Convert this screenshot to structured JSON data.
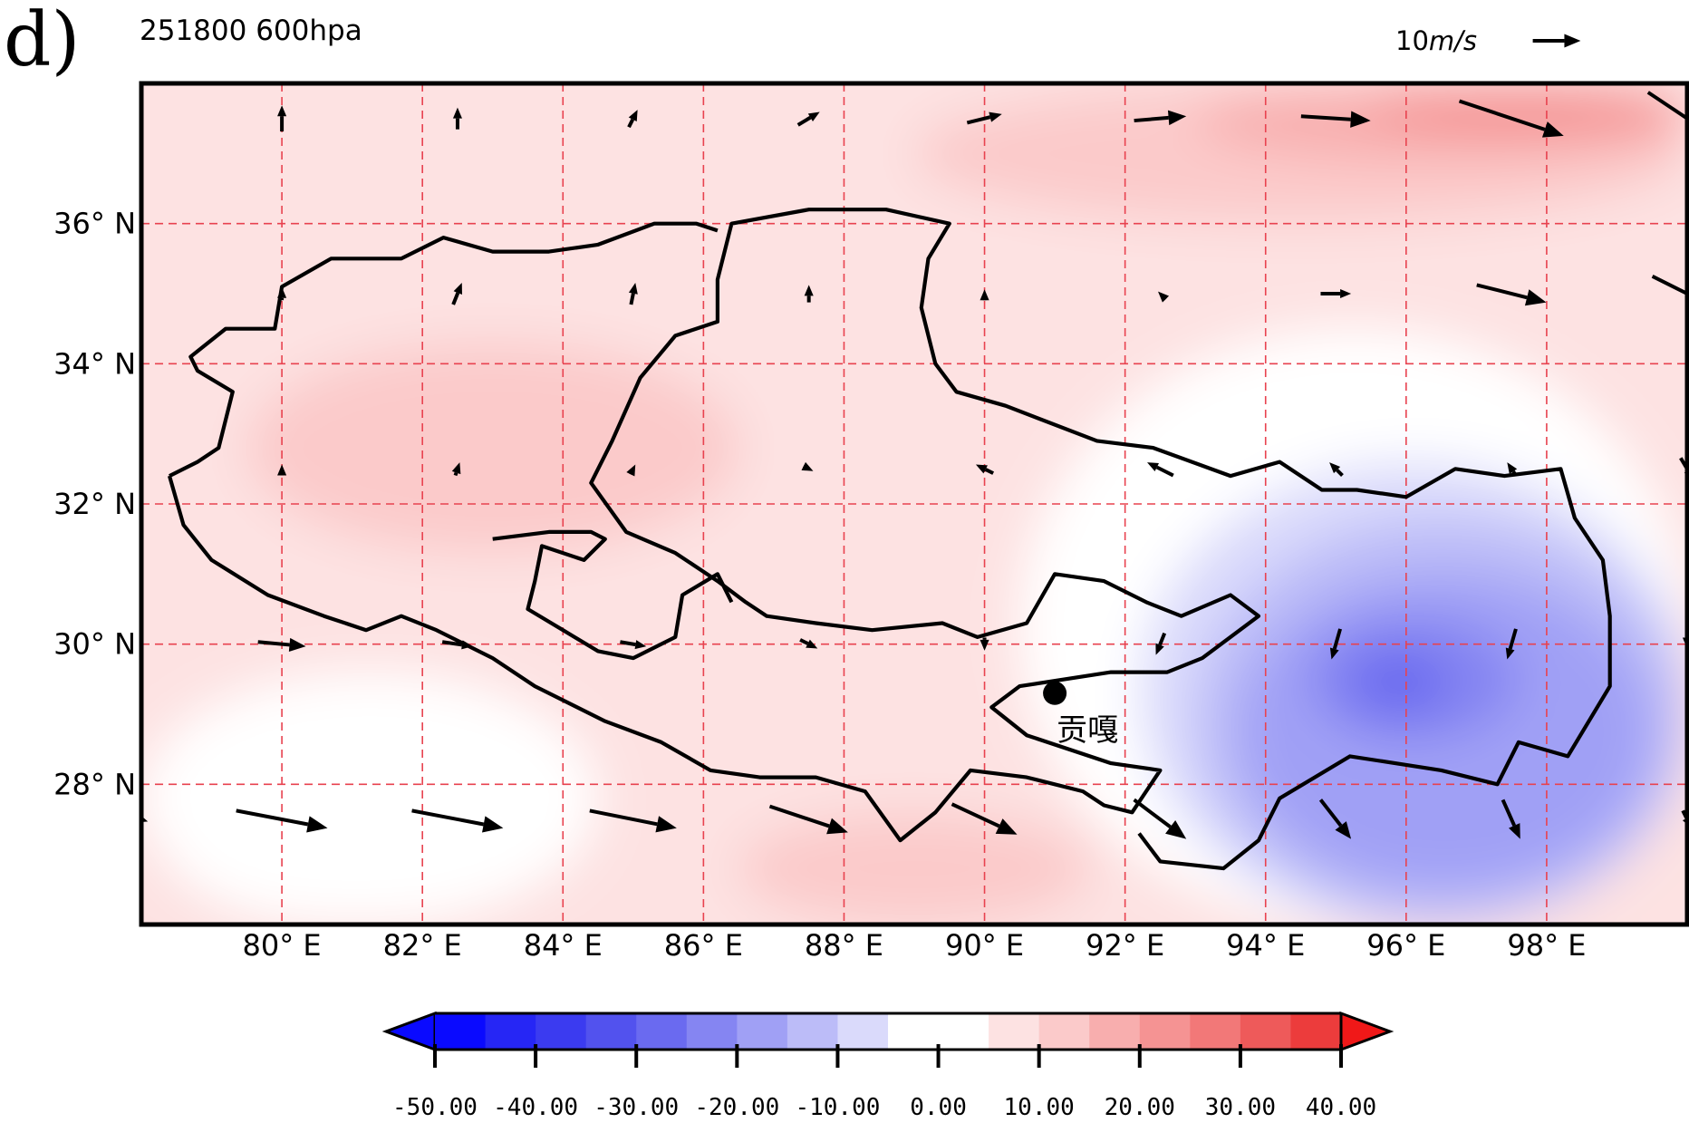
{
  "panel_label": "d)",
  "title": "251800 600hpa",
  "reference_vector": {
    "label_value": "10",
    "label_unit": "m/s",
    "speed_ms": 10
  },
  "station": {
    "name": "贡嘎",
    "lon": 91.0,
    "lat": 29.3
  },
  "colors": {
    "neg_50": "#0a0aff",
    "neg_45": "#2626f5",
    "neg_40": "#3b3bf0",
    "neg_35": "#5252ee",
    "neg_30": "#6a6af0",
    "neg_25": "#8585f2",
    "neg_20": "#a0a0f5",
    "neg_15": "#bcbcf8",
    "neg_10": "#dadafb",
    "zero": "#ffffff",
    "pos_05": "#fde2e2",
    "pos_10": "#fbcaca",
    "pos_15": "#f8aeae",
    "pos_20": "#f59393",
    "pos_25": "#f27878",
    "pos_30": "#ee5a5a",
    "pos_35": "#ec3c3c",
    "pos_40": "#f01818",
    "grid": "#e8424f",
    "border": "#000000"
  },
  "chart_data": {
    "type": "map",
    "title": "251800 600hpa",
    "lon_range": [
      78.0,
      100.0
    ],
    "lat_range": [
      26.0,
      38.0
    ],
    "x_ticks": [
      {
        "value": 80,
        "label": "80° E"
      },
      {
        "value": 82,
        "label": "82° E"
      },
      {
        "value": 84,
        "label": "84° E"
      },
      {
        "value": 86,
        "label": "86° E"
      },
      {
        "value": 88,
        "label": "88° E"
      },
      {
        "value": 90,
        "label": "90° E"
      },
      {
        "value": 92,
        "label": "92° E"
      },
      {
        "value": 94,
        "label": "94° E"
      },
      {
        "value": 96,
        "label": "96° E"
      },
      {
        "value": 98,
        "label": "98° E"
      }
    ],
    "y_ticks": [
      {
        "value": 28,
        "label": "28° N"
      },
      {
        "value": 30,
        "label": "30° N"
      },
      {
        "value": 32,
        "label": "32° N"
      },
      {
        "value": 34,
        "label": "34° N"
      },
      {
        "value": 36,
        "label": "36° N"
      }
    ],
    "colorbar": {
      "levels": [
        -50,
        -45,
        -40,
        -35,
        -30,
        -25,
        -20,
        -15,
        -10,
        -5,
        0,
        5,
        10,
        15,
        20,
        25,
        30,
        35,
        40
      ],
      "tick_values": [
        -50,
        -40,
        -30,
        -20,
        -10,
        0,
        10,
        20,
        30,
        40
      ],
      "tick_labels": [
        "-50.00",
        "-40.00",
        "-30.00",
        "-20.00",
        "-10.00",
        "0.00",
        "10.00",
        "20.00",
        "30.00",
        "40.00"
      ],
      "extend": "both"
    },
    "field_regions": [
      {
        "level": 5,
        "lon": [
          78,
          100
        ],
        "lat": [
          26,
          38
        ]
      },
      {
        "level": 0,
        "lon": [
          90.5,
          100
        ],
        "lat": [
          26,
          34.5
        ]
      },
      {
        "level": 0,
        "lon": [
          78,
          84.5
        ],
        "lat": [
          26,
          29.6
        ]
      },
      {
        "level": 10,
        "lon": [
          79.5,
          86.5
        ],
        "lat": [
          31.3,
          34.3
        ]
      },
      {
        "level": 10,
        "lon": [
          86.5,
          91.5
        ],
        "lat": [
          26,
          27.6
        ]
      },
      {
        "level": 10,
        "lon": [
          89,
          100
        ],
        "lat": [
          36,
          38
        ]
      },
      {
        "level": 15,
        "lon": [
          93,
          100
        ],
        "lat": [
          36.9,
          38
        ]
      },
      {
        "level": 20,
        "lon": [
          95.5,
          100
        ],
        "lat": [
          37.3,
          38
        ]
      },
      {
        "level": -5,
        "lon": [
          78.3,
          83.3
        ],
        "lat": [
          26,
          28.5
        ]
      },
      {
        "level": -5,
        "lon": [
          91,
          100
        ],
        "lat": [
          26,
          33.6
        ]
      },
      {
        "level": -10,
        "lon": [
          92.2,
          100
        ],
        "lat": [
          26,
          32.6
        ]
      },
      {
        "level": -15,
        "lon": [
          93,
          100
        ],
        "lat": [
          26,
          31.8
        ]
      },
      {
        "level": -20,
        "lon": [
          93.6,
          99.5
        ],
        "lat": [
          26.5,
          31.0
        ]
      },
      {
        "level": -25,
        "lon": [
          94.6,
          97.6
        ],
        "lat": [
          28.6,
          30.4
        ]
      },
      {
        "level": -30,
        "lon": [
          95.2,
          96.6
        ],
        "lat": [
          29.0,
          29.9
        ]
      }
    ],
    "wind_vectors": [
      {
        "lon": 80,
        "lat": 37.5,
        "u": 0.0,
        "v": 3.0
      },
      {
        "lon": 82.5,
        "lat": 37.5,
        "u": 0.0,
        "v": 2.5
      },
      {
        "lon": 85,
        "lat": 37.5,
        "u": 1.0,
        "v": 2.0
      },
      {
        "lon": 87.5,
        "lat": 37.5,
        "u": 2.5,
        "v": 1.5
      },
      {
        "lon": 90,
        "lat": 37.5,
        "u": 4.0,
        "v": 1.0
      },
      {
        "lon": 92.5,
        "lat": 37.5,
        "u": 6.0,
        "v": 0.5
      },
      {
        "lon": 95,
        "lat": 37.5,
        "u": 8.0,
        "v": -0.5
      },
      {
        "lon": 97.5,
        "lat": 37.5,
        "u": 12.0,
        "v": -4.0
      },
      {
        "lon": 100,
        "lat": 37.5,
        "u": 9.0,
        "v": -6.0
      },
      {
        "lon": 80,
        "lat": 35.0,
        "u": 0.0,
        "v": 1.5
      },
      {
        "lon": 82.5,
        "lat": 35.0,
        "u": 1.0,
        "v": 2.5
      },
      {
        "lon": 85,
        "lat": 35.0,
        "u": 0.5,
        "v": 2.5
      },
      {
        "lon": 87.5,
        "lat": 35.0,
        "u": 0.0,
        "v": 2.0
      },
      {
        "lon": 90,
        "lat": 35.0,
        "u": 0.0,
        "v": 1.0
      },
      {
        "lon": 92.5,
        "lat": 35.0,
        "u": -0.5,
        "v": 0.5
      },
      {
        "lon": 95,
        "lat": 35.0,
        "u": 3.5,
        "v": 0.0
      },
      {
        "lon": 97.5,
        "lat": 35.0,
        "u": 8.0,
        "v": -2.0
      },
      {
        "lon": 100,
        "lat": 35.0,
        "u": 8.0,
        "v": -4.0
      },
      {
        "lon": 80,
        "lat": 32.5,
        "u": 0.0,
        "v": 1.0
      },
      {
        "lon": 82.5,
        "lat": 32.5,
        "u": 0.5,
        "v": 1.5
      },
      {
        "lon": 85,
        "lat": 32.5,
        "u": 0.5,
        "v": 1.0
      },
      {
        "lon": 87.5,
        "lat": 32.5,
        "u": 1.0,
        "v": -0.5
      },
      {
        "lon": 90,
        "lat": 32.5,
        "u": -2.0,
        "v": 1.0
      },
      {
        "lon": 92.5,
        "lat": 32.5,
        "u": -3.0,
        "v": 1.5
      },
      {
        "lon": 95,
        "lat": 32.5,
        "u": -1.5,
        "v": 1.5
      },
      {
        "lon": 97.5,
        "lat": 32.5,
        "u": -1.0,
        "v": 1.5
      },
      {
        "lon": 100,
        "lat": 32.5,
        "u": 1.5,
        "v": -2.5
      },
      {
        "lon": 80,
        "lat": 30.0,
        "u": 5.5,
        "v": -0.5
      },
      {
        "lon": 82.5,
        "lat": 30.0,
        "u": 3.5,
        "v": -0.5
      },
      {
        "lon": 85,
        "lat": 30.0,
        "u": 3.0,
        "v": -0.5
      },
      {
        "lon": 87.5,
        "lat": 30.0,
        "u": 2.0,
        "v": -1.0
      },
      {
        "lon": 90,
        "lat": 30.0,
        "u": 0.0,
        "v": -1.5
      },
      {
        "lon": 92.5,
        "lat": 30.0,
        "u": -1.0,
        "v": -2.5
      },
      {
        "lon": 95,
        "lat": 30.0,
        "u": -1.0,
        "v": -3.5
      },
      {
        "lon": 97.5,
        "lat": 30.0,
        "u": -1.0,
        "v": -3.5
      },
      {
        "lon": 100,
        "lat": 30.0,
        "u": 0.0,
        "v": -1.0
      },
      {
        "lon": 78,
        "lat": 27.5,
        "u": 1.5,
        "v": -0.5
      },
      {
        "lon": 80,
        "lat": 27.5,
        "u": 10.5,
        "v": -2.0
      },
      {
        "lon": 82.5,
        "lat": 27.5,
        "u": 10.5,
        "v": -2.0
      },
      {
        "lon": 85,
        "lat": 27.5,
        "u": 10.0,
        "v": -2.0
      },
      {
        "lon": 87.5,
        "lat": 27.5,
        "u": 9.0,
        "v": -3.0
      },
      {
        "lon": 90,
        "lat": 27.5,
        "u": 7.5,
        "v": -3.5
      },
      {
        "lon": 92.5,
        "lat": 27.5,
        "u": 6.0,
        "v": -4.5
      },
      {
        "lon": 95,
        "lat": 27.5,
        "u": 3.5,
        "v": -4.5
      },
      {
        "lon": 97.5,
        "lat": 27.5,
        "u": 2.0,
        "v": -4.5
      },
      {
        "lon": 100,
        "lat": 27.5,
        "u": 1.0,
        "v": -2.0
      }
    ],
    "boundaries": [
      {
        "name": "region-outline-north",
        "points": [
          [
            78.4,
            32.4
          ],
          [
            78.6,
            31.7
          ],
          [
            79.0,
            31.2
          ],
          [
            79.8,
            30.7
          ],
          [
            80.6,
            30.4
          ],
          [
            81.2,
            30.2
          ],
          [
            81.7,
            30.4
          ],
          [
            82.2,
            30.2
          ],
          [
            83.0,
            29.8
          ],
          [
            83.6,
            29.4
          ],
          [
            84.6,
            28.9
          ],
          [
            85.4,
            28.6
          ],
          [
            86.1,
            28.2
          ],
          [
            86.8,
            28.1
          ],
          [
            87.6,
            28.1
          ],
          [
            88.3,
            27.9
          ],
          [
            88.8,
            27.2
          ],
          [
            89.3,
            27.6
          ],
          [
            89.8,
            28.2
          ],
          [
            90.6,
            28.1
          ],
          [
            91.4,
            27.9
          ],
          [
            91.7,
            27.7
          ],
          [
            92.1,
            27.6
          ],
          [
            92.5,
            28.2
          ],
          [
            91.8,
            28.3
          ],
          [
            90.6,
            28.7
          ],
          [
            90.1,
            29.1
          ],
          [
            90.5,
            29.4
          ],
          [
            91.8,
            29.6
          ],
          [
            92.6,
            29.6
          ],
          [
            93.1,
            29.8
          ],
          [
            93.9,
            30.4
          ],
          [
            93.5,
            30.7
          ],
          [
            92.8,
            30.4
          ],
          [
            92.3,
            30.6
          ],
          [
            91.7,
            30.9
          ],
          [
            91.0,
            31.0
          ],
          [
            90.6,
            30.3
          ],
          [
            89.9,
            30.1
          ],
          [
            89.4,
            30.3
          ],
          [
            88.4,
            30.2
          ],
          [
            87.6,
            30.3
          ],
          [
            86.9,
            30.4
          ],
          [
            86.6,
            30.6
          ],
          [
            86.2,
            30.9
          ],
          [
            85.6,
            31.3
          ],
          [
            84.9,
            31.6
          ],
          [
            84.4,
            32.3
          ],
          [
            84.7,
            32.9
          ],
          [
            85.1,
            33.8
          ],
          [
            85.6,
            34.4
          ],
          [
            86.2,
            34.6
          ],
          [
            86.2,
            35.2
          ],
          [
            86.4,
            36.0
          ],
          [
            87.5,
            36.2
          ],
          [
            88.6,
            36.2
          ],
          [
            89.5,
            36.0
          ],
          [
            89.2,
            35.5
          ],
          [
            89.1,
            34.8
          ],
          [
            89.3,
            34.0
          ],
          [
            89.6,
            33.6
          ],
          [
            90.3,
            33.4
          ],
          [
            91.6,
            32.9
          ],
          [
            92.4,
            32.8
          ],
          [
            93.5,
            32.4
          ],
          [
            94.2,
            32.6
          ],
          [
            94.8,
            32.2
          ],
          [
            95.3,
            32.2
          ],
          [
            96.0,
            32.1
          ],
          [
            96.7,
            32.5
          ],
          [
            97.4,
            32.4
          ],
          [
            98.2,
            32.5
          ],
          [
            98.4,
            31.8
          ],
          [
            98.8,
            31.2
          ],
          [
            98.9,
            30.4
          ],
          [
            98.9,
            29.4
          ],
          [
            98.3,
            28.4
          ],
          [
            97.6,
            28.6
          ],
          [
            97.3,
            28.0
          ],
          [
            96.5,
            28.2
          ],
          [
            95.2,
            28.4
          ],
          [
            94.2,
            27.8
          ],
          [
            93.9,
            27.2
          ],
          [
            93.4,
            26.8
          ],
          [
            92.5,
            26.9
          ],
          [
            92.2,
            27.3
          ]
        ]
      },
      {
        "name": "region-outline-west",
        "points": [
          [
            78.4,
            32.4
          ],
          [
            78.8,
            32.6
          ],
          [
            79.1,
            32.8
          ],
          [
            79.3,
            33.6
          ],
          [
            78.8,
            33.9
          ],
          [
            78.7,
            34.1
          ],
          [
            79.2,
            34.5
          ],
          [
            79.9,
            34.5
          ],
          [
            80.0,
            35.1
          ],
          [
            80.7,
            35.5
          ],
          [
            81.7,
            35.5
          ],
          [
            82.3,
            35.8
          ],
          [
            83.0,
            35.6
          ],
          [
            83.8,
            35.6
          ],
          [
            84.5,
            35.7
          ],
          [
            85.3,
            36.0
          ],
          [
            85.9,
            36.0
          ],
          [
            86.2,
            35.9
          ]
        ]
      },
      {
        "name": "region-outline-inner",
        "points": [
          [
            83.0,
            31.5
          ],
          [
            83.8,
            31.6
          ],
          [
            84.4,
            31.6
          ],
          [
            84.6,
            31.5
          ],
          [
            84.3,
            31.2
          ],
          [
            83.7,
            31.4
          ],
          [
            83.6,
            30.9
          ],
          [
            83.5,
            30.5
          ],
          [
            84.0,
            30.2
          ],
          [
            84.5,
            29.9
          ],
          [
            85.0,
            29.8
          ],
          [
            85.6,
            30.1
          ],
          [
            85.7,
            30.7
          ],
          [
            86.2,
            31.0
          ],
          [
            86.4,
            30.6
          ]
        ]
      }
    ]
  }
}
